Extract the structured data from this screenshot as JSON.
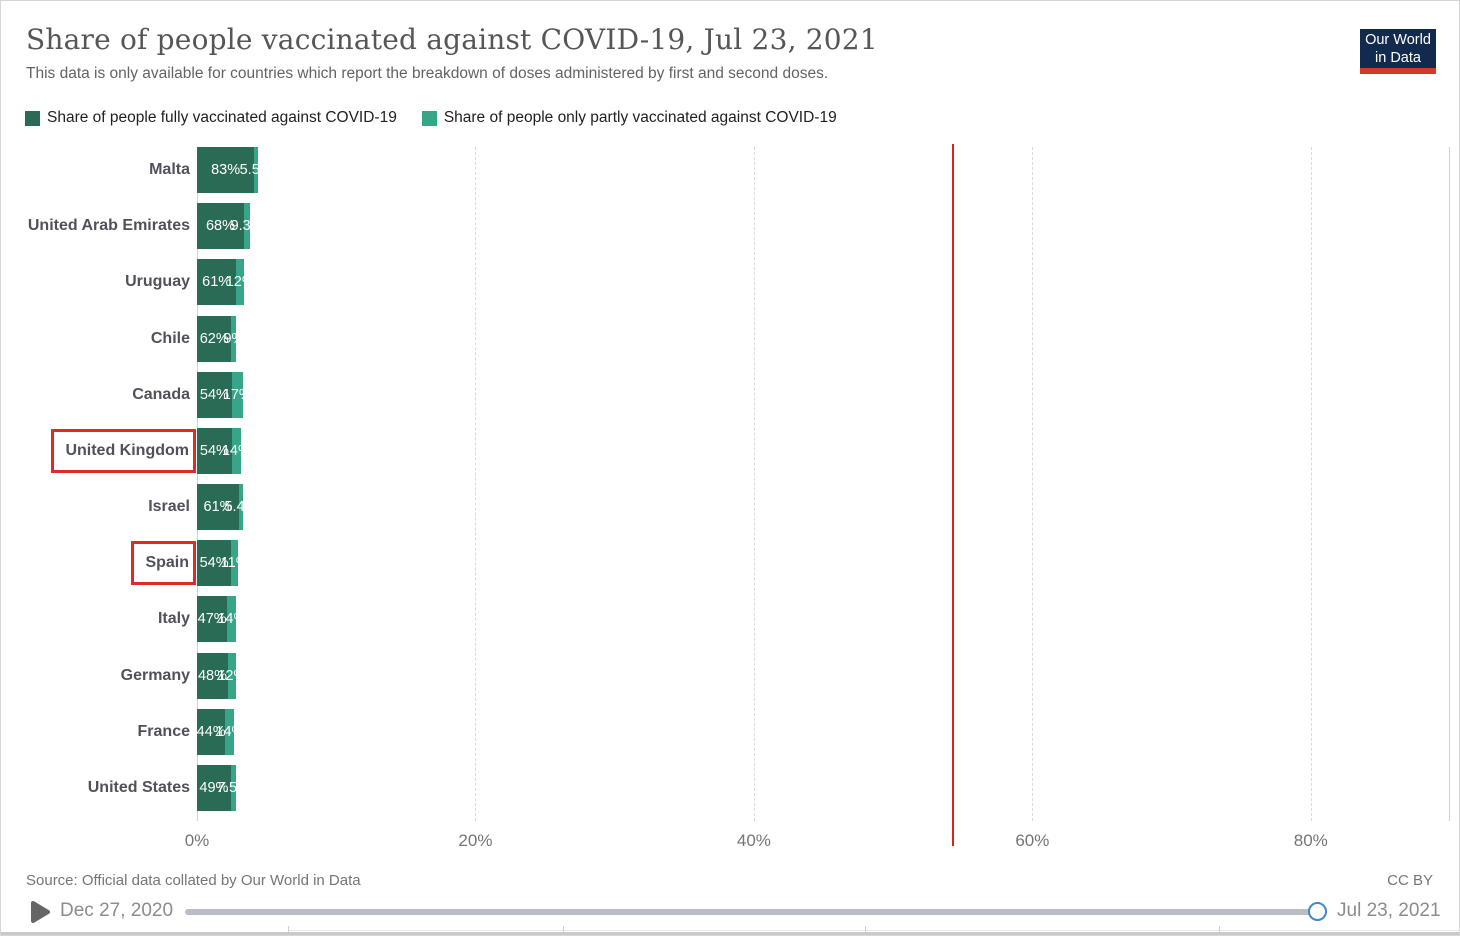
{
  "header": {
    "title": "Share of people vaccinated against COVID-19, Jul 23, 2021",
    "subtitle": "This data is only available for countries which report the breakdown of doses administered by first and second doses.",
    "logo": {
      "line1": "Our World",
      "line2": "in Data",
      "bg_color": "#122a4e",
      "bar_color": "#d7372c"
    }
  },
  "legend": {
    "items": [
      {
        "label": "Share of people fully vaccinated against COVID-19",
        "color": "#2a6b55"
      },
      {
        "label": "Share of people only partly vaccinated against COVID-19",
        "color": "#36a588"
      }
    ]
  },
  "chart_data": {
    "type": "bar",
    "orientation": "horizontal",
    "stacked": true,
    "categories": [
      "Malta",
      "United Arab Emirates",
      "Uruguay",
      "Chile",
      "Canada",
      "United Kingdom",
      "Israel",
      "Spain",
      "Italy",
      "Germany",
      "France",
      "United States"
    ],
    "series": [
      {
        "name": "Share of people fully vaccinated against COVID-19",
        "color": "#2a6b55",
        "values": [
          83,
          68,
          61,
          62,
          54,
          54,
          61,
          54,
          47,
          48,
          44,
          49
        ],
        "labels": [
          "83%",
          "68%",
          "61%",
          "62%",
          "54%",
          "54%",
          "61%",
          "54%",
          "47%",
          "48%",
          "44%",
          "49%"
        ]
      },
      {
        "name": "Share of people only partly vaccinated against COVID-19",
        "color": "#36a588",
        "values": [
          5.5,
          9.3,
          12,
          9,
          17,
          14,
          5.4,
          11,
          14,
          12,
          14,
          7.5
        ],
        "labels": [
          "5.5%",
          "9.3%",
          "12%",
          "9%",
          "17%",
          "14%",
          "5.4%",
          "11%",
          "14%",
          "12%",
          "14%",
          "7.5%"
        ]
      }
    ],
    "annotated_categories": [
      "United Kingdom",
      "Spain"
    ],
    "annotation_box_color": "#e02a25",
    "x_ticks": [
      "0%",
      "20%",
      "40%",
      "60%",
      "80%"
    ],
    "x_tick_values": [
      0,
      20,
      40,
      60,
      80
    ],
    "xlim": [
      0,
      90
    ],
    "red_line_value": 54.3,
    "red_line_color": "#d52222",
    "grid": true,
    "legend_position": "top"
  },
  "footer": {
    "source": "Source: Official data collated by Our World in Data",
    "license": "CC BY",
    "timeline": {
      "start_date": "Dec 27, 2020",
      "end_date": "Jul 23, 2021",
      "play_icon": "play-icon",
      "progress_percent": 100
    }
  }
}
